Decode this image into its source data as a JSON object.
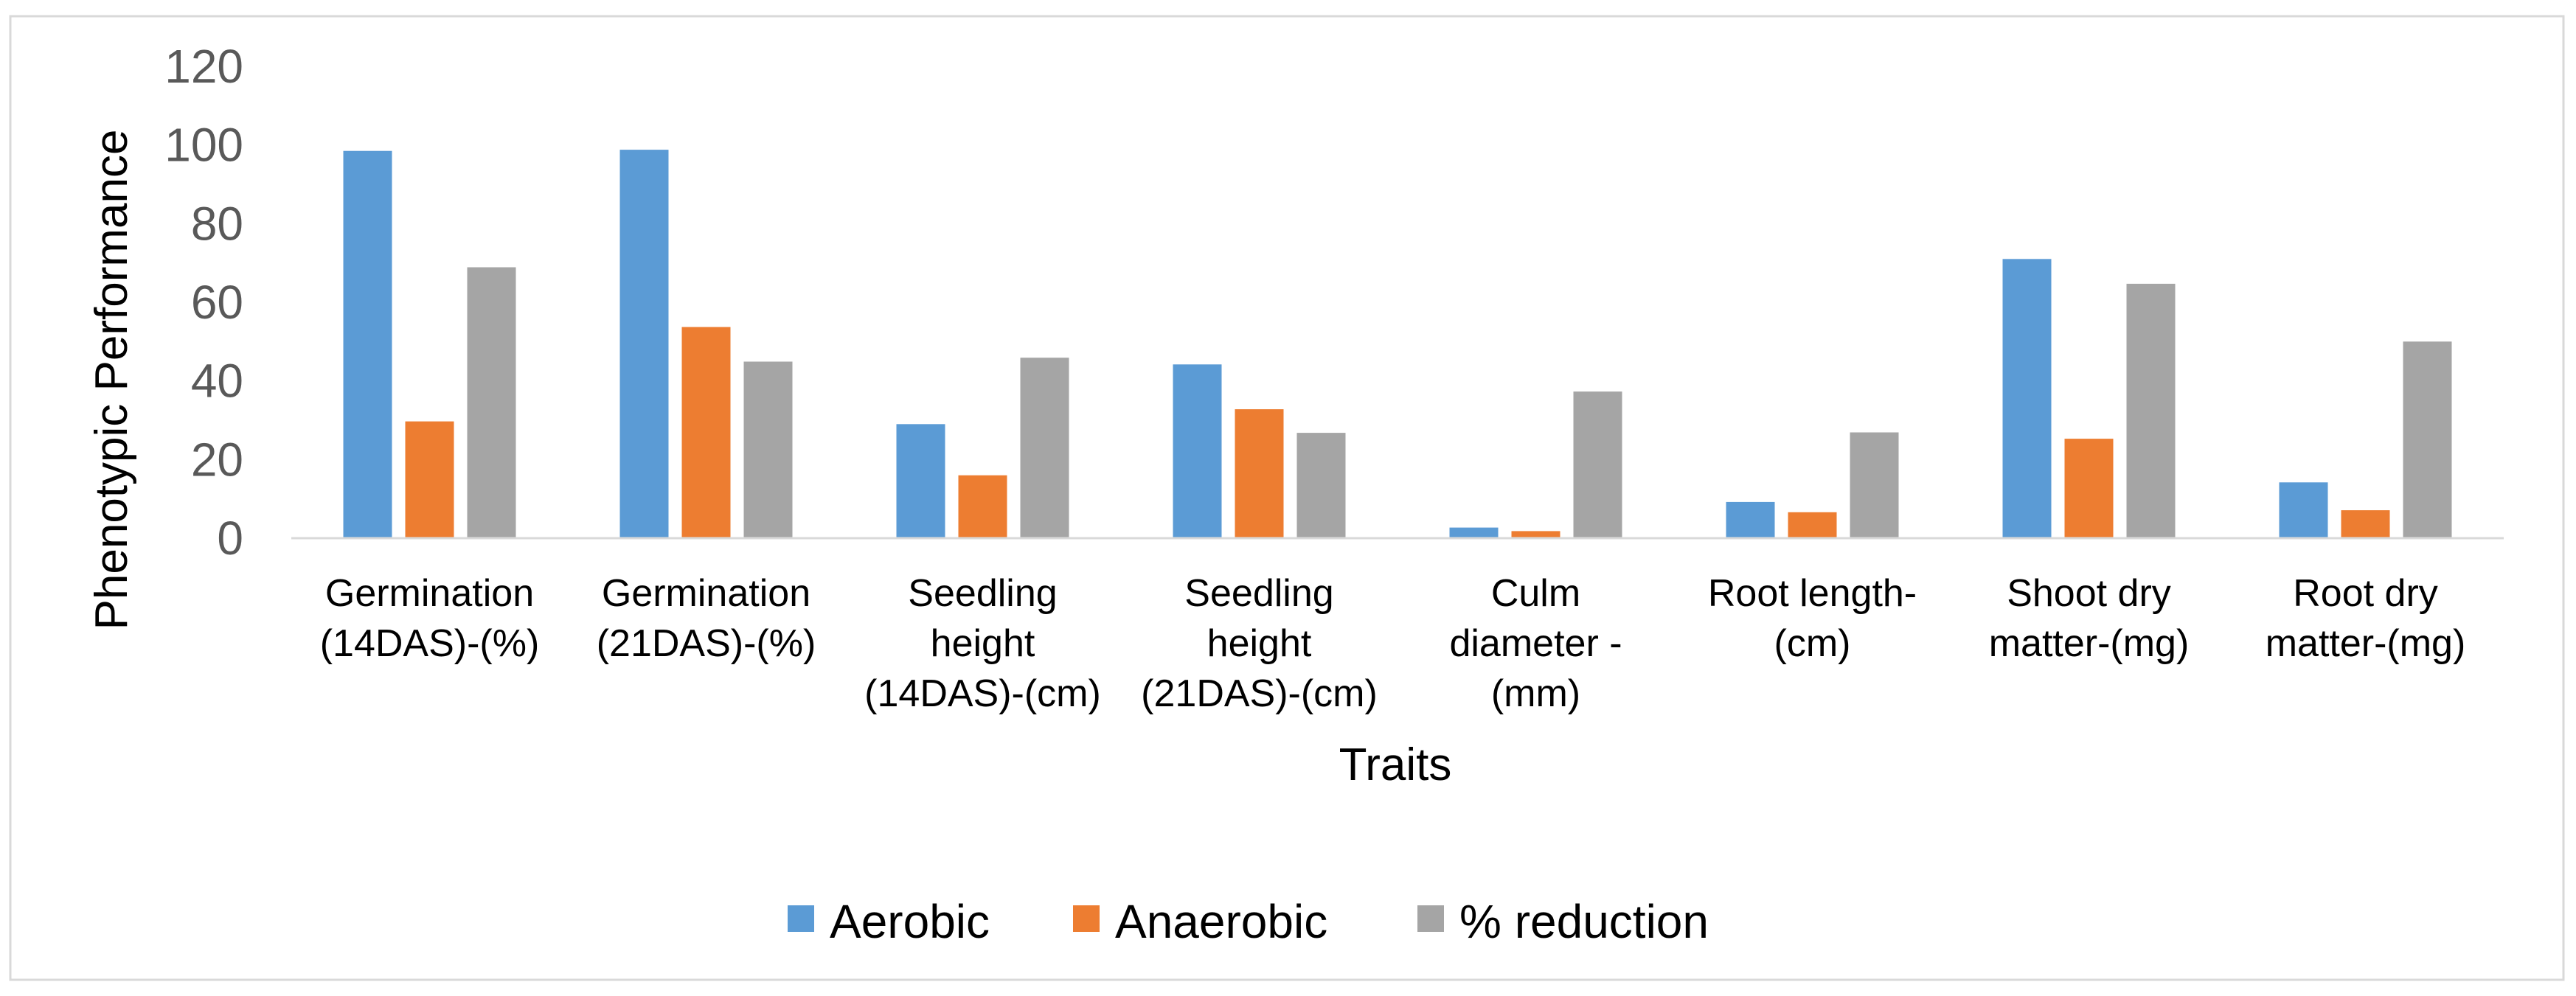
{
  "chart_data": {
    "type": "bar",
    "title": "",
    "xlabel": "Traits",
    "ylabel": "Phenotypic Performance",
    "ylim": [
      0,
      120
    ],
    "yticks": [
      0,
      20,
      40,
      60,
      80,
      100,
      120
    ],
    "grid": false,
    "legend_position": "bottom",
    "categories": [
      [
        "Germination",
        "(14DAS)-(%)"
      ],
      [
        "Germination",
        "(21DAS)-(%)"
      ],
      [
        "Seedling",
        "height",
        "(14DAS)-(cm)"
      ],
      [
        "Seedling",
        "height",
        "(21DAS)-(cm)"
      ],
      [
        "Culm",
        "diameter -",
        "(mm)"
      ],
      [
        "Root length-",
        "(cm)"
      ],
      [
        "Shoot dry",
        "matter-(mg)"
      ],
      [
        "Root dry",
        "matter-(mg)"
      ]
    ],
    "series": [
      {
        "name": "Aerobic",
        "color": "#5B9BD5",
        "values": [
          98.5,
          98.8,
          29,
          44.2,
          2.7,
          9.2,
          71,
          14.2
        ]
      },
      {
        "name": "Anaerobic",
        "color": "#ED7D31",
        "values": [
          29.7,
          53.7,
          16,
          32.8,
          1.8,
          6.6,
          25.3,
          7.1
        ]
      },
      {
        "name": "% reduction",
        "color": "#A5A5A5",
        "values": [
          68.9,
          44.9,
          45.9,
          26.8,
          37.3,
          26.9,
          64.7,
          50
        ]
      }
    ]
  }
}
